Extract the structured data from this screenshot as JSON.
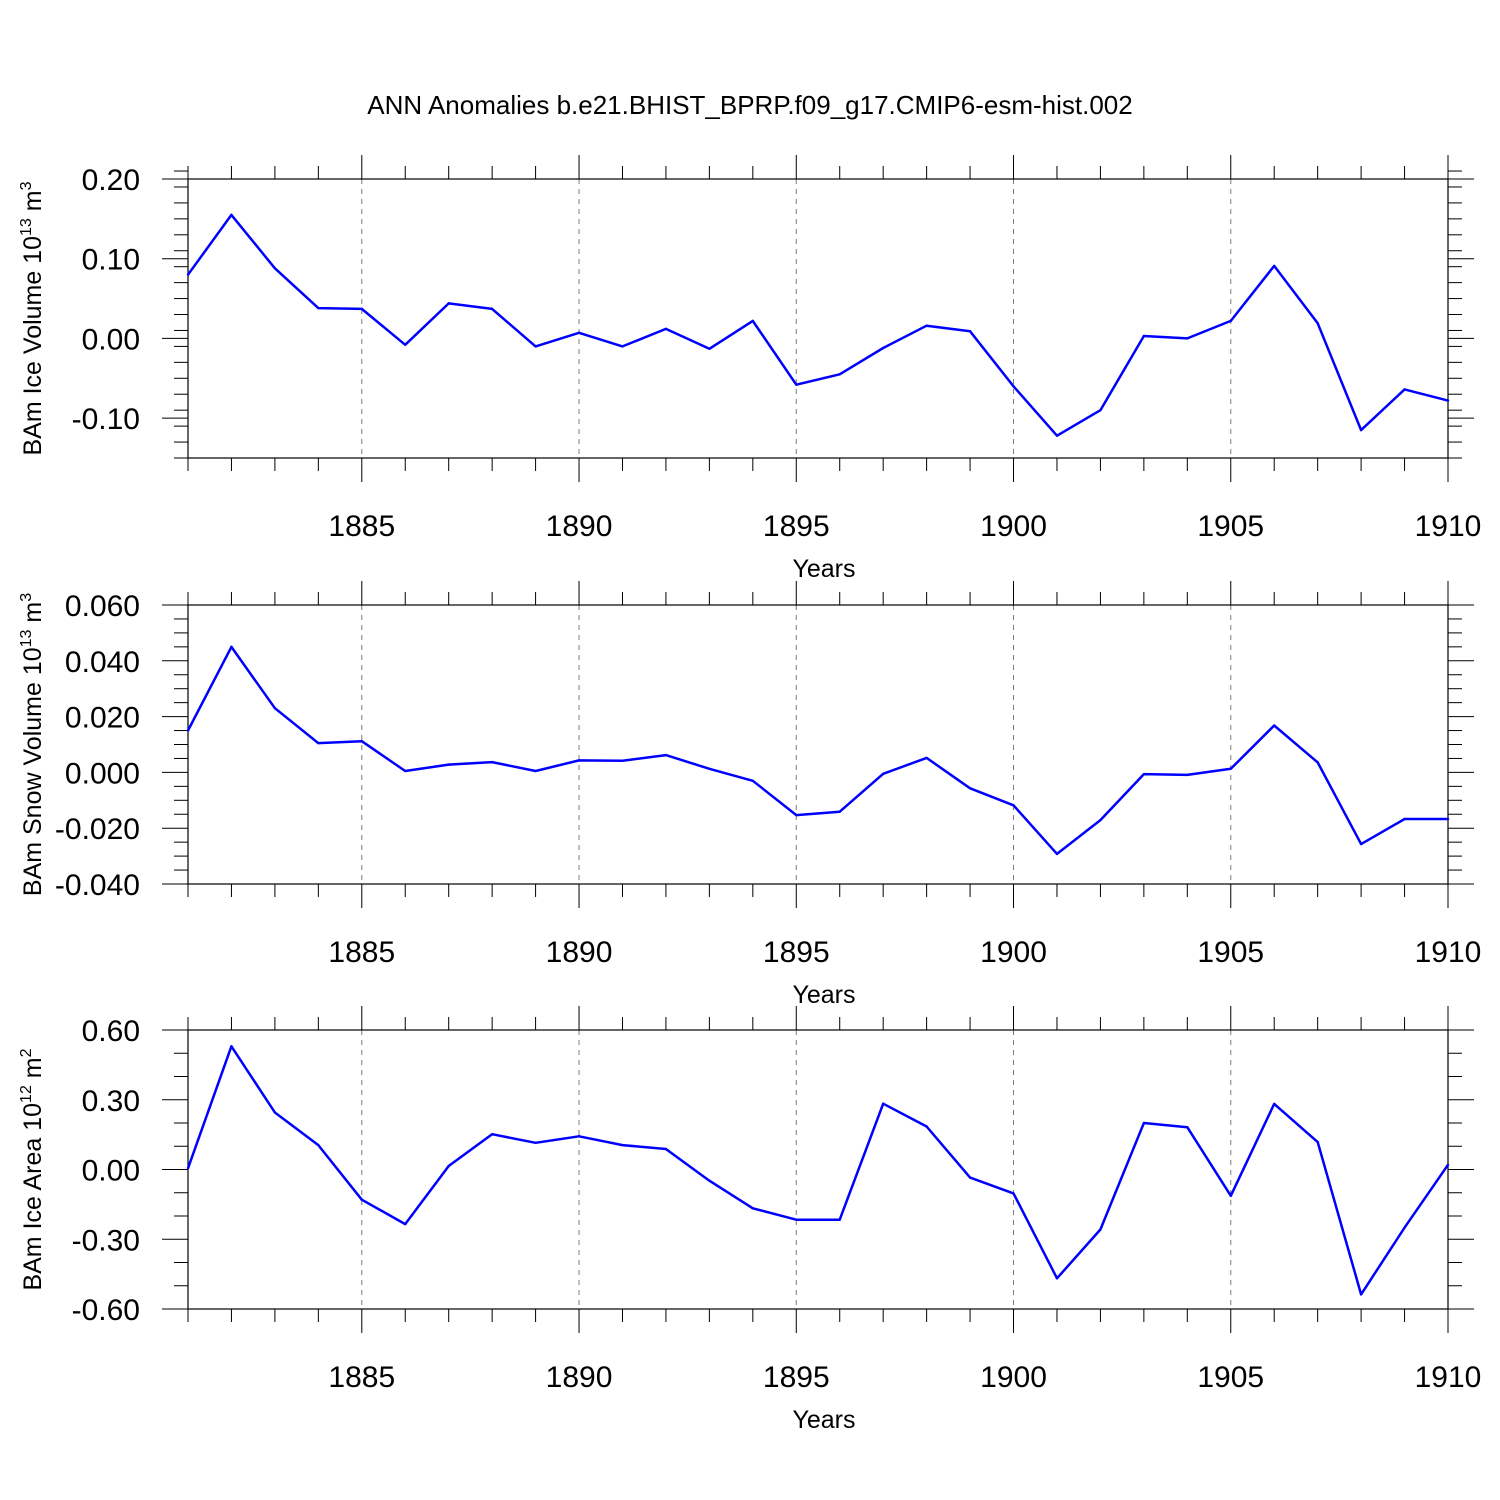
{
  "title": "ANN Anomalies b.e21.BHIST_BPRP.f09_g17.CMIP6-esm-hist.002",
  "colors": {
    "series": "#0000ff",
    "axis": "#000000",
    "grid": "#7a7a7a"
  },
  "chart_data": [
    {
      "type": "line",
      "title": "",
      "ylabel_base": "BAm Ice Volume 10",
      "ylabel_exp": "13",
      "ylabel_unit": " m",
      "ylabel_unit_exp": "3",
      "xlabel": "Years",
      "xlim": [
        1881,
        1910
      ],
      "ylim": [
        -0.15,
        0.2
      ],
      "x_ticks": [
        1885,
        1890,
        1895,
        1900,
        1905,
        1910
      ],
      "y_ticks": [
        -0.1,
        0.0,
        0.1,
        0.2
      ],
      "y_tick_labels": [
        "-0.10",
        "0.00",
        "0.10",
        "0.20"
      ],
      "y_minor_step": 0.02,
      "grid": "dashed vertical at major x ticks",
      "series": [
        {
          "x": [
            1881,
            1882,
            1883,
            1884,
            1885,
            1886,
            1887,
            1888,
            1889,
            1890,
            1891,
            1892,
            1893,
            1894,
            1895,
            1896,
            1897,
            1898,
            1899,
            1900,
            1901,
            1902,
            1903,
            1904,
            1905,
            1906,
            1907,
            1908,
            1909,
            1910
          ],
          "values": [
            0.08,
            0.155,
            0.088,
            0.038,
            0.037,
            -0.008,
            0.044,
            0.037,
            -0.01,
            0.007,
            -0.01,
            0.012,
            -0.013,
            0.022,
            -0.058,
            -0.045,
            -0.012,
            0.016,
            0.009,
            -0.06,
            -0.122,
            -0.09,
            0.003,
            0.0,
            0.022,
            0.091,
            0.019,
            -0.115,
            -0.064,
            -0.078
          ]
        }
      ]
    },
    {
      "type": "line",
      "title": "",
      "ylabel_base": "BAm Snow Volume 10",
      "ylabel_exp": "13",
      "ylabel_unit": " m",
      "ylabel_unit_exp": "3",
      "xlabel": "Years",
      "xlim": [
        1881,
        1910
      ],
      "ylim": [
        -0.04,
        0.06
      ],
      "x_ticks": [
        1885,
        1890,
        1895,
        1900,
        1905,
        1910
      ],
      "y_ticks": [
        -0.04,
        -0.02,
        0.0,
        0.02,
        0.04,
        0.06
      ],
      "y_tick_labels": [
        "-0.040",
        "-0.020",
        "0.000",
        "0.020",
        "0.040",
        "0.060"
      ],
      "y_minor_step": 0.005,
      "grid": "dashed vertical at major x ticks",
      "series": [
        {
          "x": [
            1881,
            1882,
            1883,
            1884,
            1885,
            1886,
            1887,
            1888,
            1889,
            1890,
            1891,
            1892,
            1893,
            1894,
            1895,
            1896,
            1897,
            1898,
            1899,
            1900,
            1901,
            1902,
            1903,
            1904,
            1905,
            1906,
            1907,
            1908,
            1909,
            1910
          ],
          "values": [
            0.015,
            0.045,
            0.023,
            0.0105,
            0.0112,
            0.0005,
            0.0028,
            0.0037,
            0.0005,
            0.0043,
            0.0042,
            0.0062,
            0.0013,
            -0.003,
            -0.0153,
            -0.0141,
            -0.0005,
            0.0052,
            -0.0057,
            -0.0118,
            -0.0292,
            -0.0171,
            -0.0006,
            -0.0009,
            0.0013,
            0.0168,
            0.0036,
            -0.0257,
            -0.0167,
            -0.0167
          ]
        }
      ]
    },
    {
      "type": "line",
      "title": "",
      "ylabel_base": "BAm Ice Area 10",
      "ylabel_exp": "12",
      "ylabel_unit": " m",
      "ylabel_unit_exp": "2",
      "xlabel": "Years",
      "xlim": [
        1881,
        1910
      ],
      "ylim": [
        -0.6,
        0.6
      ],
      "x_ticks": [
        1885,
        1890,
        1895,
        1900,
        1905,
        1910
      ],
      "y_ticks": [
        -0.6,
        -0.3,
        0.0,
        0.3,
        0.6
      ],
      "y_tick_labels": [
        "-0.60",
        "-0.30",
        "0.00",
        "0.30",
        "0.60"
      ],
      "y_minor_step": 0.1,
      "grid": "dashed vertical at major x ticks",
      "series": [
        {
          "x": [
            1881,
            1882,
            1883,
            1884,
            1885,
            1886,
            1887,
            1888,
            1889,
            1890,
            1891,
            1892,
            1893,
            1894,
            1895,
            1896,
            1897,
            1898,
            1899,
            1900,
            1901,
            1902,
            1903,
            1904,
            1905,
            1906,
            1907,
            1908,
            1909,
            1910
          ],
          "values": [
            0.005,
            0.53,
            0.245,
            0.105,
            -0.13,
            -0.235,
            0.015,
            0.152,
            0.115,
            0.143,
            0.105,
            0.088,
            -0.048,
            -0.167,
            -0.216,
            -0.216,
            0.283,
            0.185,
            -0.035,
            -0.103,
            -0.468,
            -0.258,
            0.2,
            0.182,
            -0.113,
            0.282,
            0.118,
            -0.537,
            -0.25,
            0.02
          ]
        }
      ]
    }
  ]
}
